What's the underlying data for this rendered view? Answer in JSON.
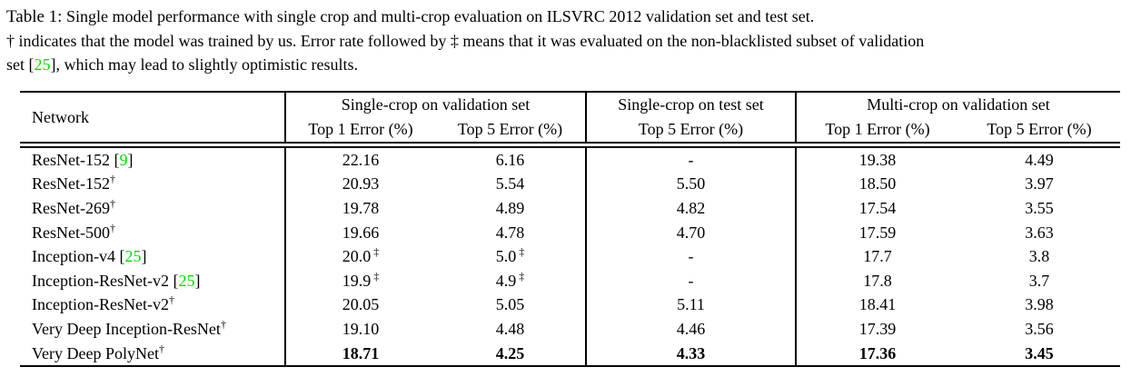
{
  "colors": {
    "citation_green": "#00DE00",
    "text": "#000000",
    "background": "#ffffff"
  },
  "caption": {
    "lines": [
      {
        "segments": [
          {
            "t": "Table 1:",
            "kind": "label"
          },
          {
            "t": " Single model performance with single crop and multi-crop evaluation on ILSVRC 2012 validation set and test set.",
            "kind": "text"
          }
        ]
      },
      {
        "segments": [
          {
            "t": "† indicates that the model was trained by us. Error rate followed by ‡ means that it was evaluated on the non-blacklisted subset of validation",
            "kind": "text"
          }
        ]
      },
      {
        "segments": [
          {
            "t": "set [",
            "kind": "text"
          },
          {
            "t": "25",
            "kind": "cite"
          },
          {
            "t": "], which may lead to slightly optimistic results.",
            "kind": "text"
          }
        ]
      }
    ]
  },
  "table": {
    "network_header": "Network",
    "groups": [
      {
        "label": "Single-crop on validation set",
        "sub": [
          "Top 1 Error (%)",
          "Top 5 Error (%)"
        ]
      },
      {
        "label": "Single-crop on test set",
        "sub": [
          "Top 5 Error (%)"
        ]
      },
      {
        "label": "Multi-crop on validation set",
        "sub": [
          "Top 1 Error (%)",
          "Top 5 Error (%)"
        ]
      }
    ],
    "rows": [
      {
        "network": {
          "name": "ResNet-152",
          "cite": "9"
        },
        "cells": [
          "22.16",
          "6.16",
          "-",
          "19.38",
          "4.49"
        ]
      },
      {
        "network": {
          "name": "ResNet-152",
          "dagger": true
        },
        "cells": [
          "20.93",
          "5.54",
          "5.50",
          "18.50",
          "3.97"
        ]
      },
      {
        "network": {
          "name": "ResNet-269",
          "dagger": true
        },
        "cells": [
          "19.78",
          "4.89",
          "4.82",
          "17.54",
          "3.55"
        ]
      },
      {
        "network": {
          "name": "ResNet-500",
          "dagger": true
        },
        "cells": [
          "19.66",
          "4.78",
          "4.70",
          "17.59",
          "3.63"
        ]
      },
      {
        "network": {
          "name": "Inception-v4",
          "cite": "25"
        },
        "cells": [
          {
            "t": "20.0",
            "ddagger": true
          },
          {
            "t": "5.0",
            "ddagger": true
          },
          "-",
          "17.7",
          "3.8"
        ]
      },
      {
        "network": {
          "name": "Inception-ResNet-v2",
          "cite": "25"
        },
        "cells": [
          {
            "t": "19.9",
            "ddagger": true
          },
          {
            "t": "4.9",
            "ddagger": true
          },
          "-",
          "17.8",
          "3.7"
        ]
      },
      {
        "network": {
          "name": "Inception-ResNet-v2",
          "dagger": true
        },
        "cells": [
          "20.05",
          "5.05",
          "5.11",
          "18.41",
          "3.98"
        ]
      },
      {
        "network": {
          "name": "Very Deep Inception-ResNet",
          "dagger": true
        },
        "cells": [
          "19.10",
          "4.48",
          "4.46",
          "17.39",
          "3.56"
        ]
      },
      {
        "network": {
          "name": "Very Deep PolyNet",
          "dagger": true
        },
        "bold_values": true,
        "cells": [
          "18.71",
          "4.25",
          "4.33",
          "17.36",
          "3.45"
        ]
      }
    ]
  }
}
